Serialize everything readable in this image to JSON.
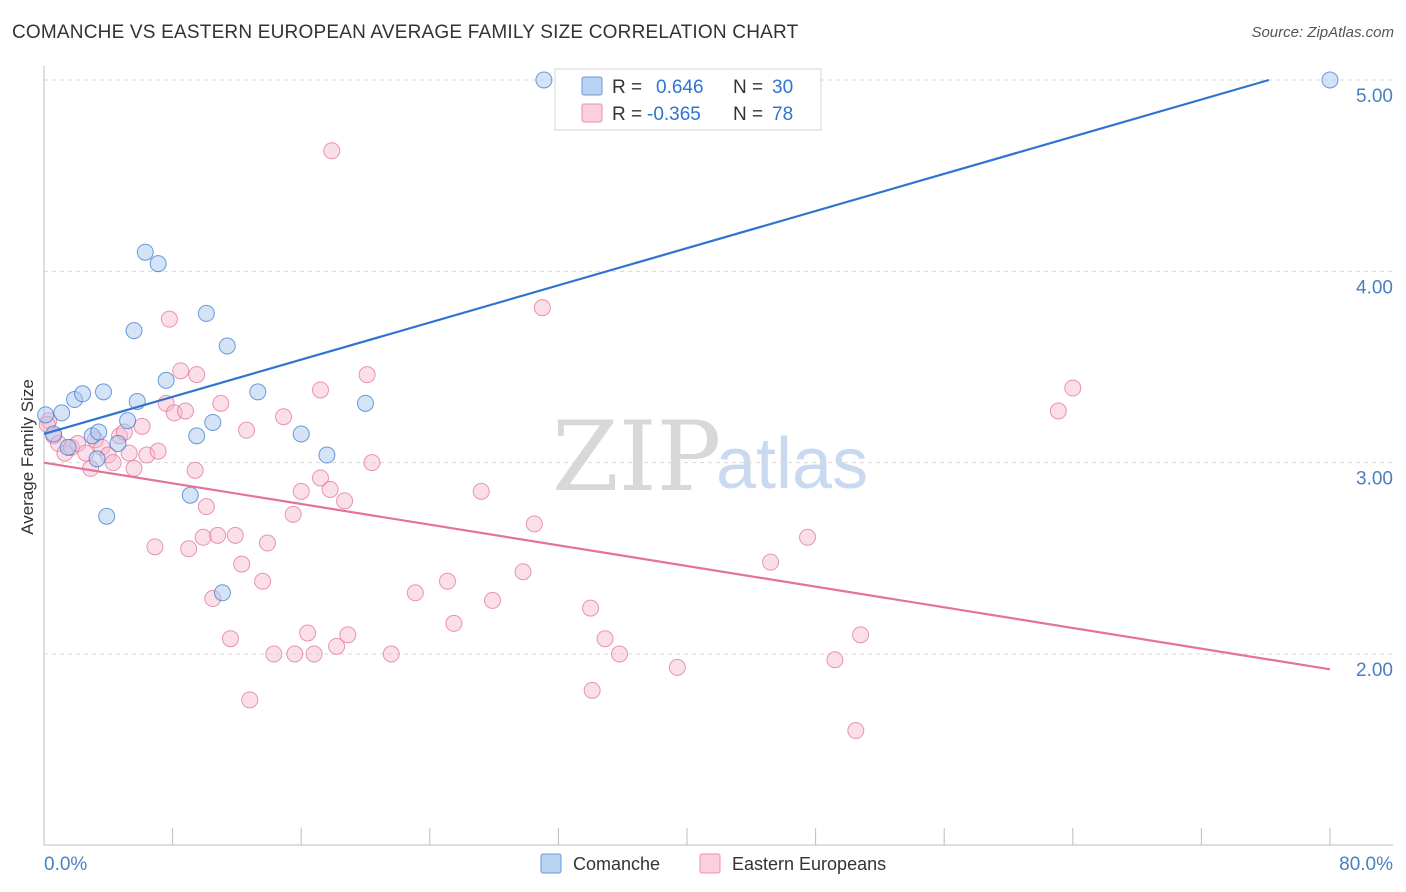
{
  "header": {
    "title": "COMANCHE VS EASTERN EUROPEAN AVERAGE FAMILY SIZE CORRELATION CHART",
    "source": "Source: ZipAtlas.com"
  },
  "watermark": {
    "zip": "ZIP",
    "atlas": "atlas"
  },
  "colors": {
    "comanche_fill": "#a9c8ee",
    "comanche_line": "#2f74d0",
    "eastern_fill": "#f6b8cb",
    "eastern_line": "#e4739a",
    "tick_text": "#4a7fc1",
    "grid": "#d9d9d9"
  },
  "legend_stats": {
    "comanche": {
      "r_label": "R =",
      "r_value": "0.646",
      "n_label": "N =",
      "n_value": "30"
    },
    "eastern": {
      "r_label": "R =",
      "r_value": "-0.365",
      "n_label": "N =",
      "n_value": "78"
    }
  },
  "chart_data": {
    "type": "scatter",
    "title": "COMANCHE VS EASTERN EUROPEAN AVERAGE FAMILY SIZE CORRELATION CHART",
    "xlabel": "",
    "ylabel": "Average Family Size",
    "xlim": [
      0,
      80
    ],
    "ylim": [
      1.0,
      5.15
    ],
    "x_tick_labels": [
      "0.0%",
      "80.0%"
    ],
    "y_ticks": [
      2.0,
      3.0,
      4.0,
      5.0
    ],
    "y_tick_labels": [
      "2.00",
      "3.00",
      "4.00",
      "5.00"
    ],
    "grid": true,
    "legend": "bottom-center",
    "series": [
      {
        "name": "Comanche",
        "trend": {
          "x": [
            0,
            76.2
          ],
          "y": [
            3.15,
            5.0
          ]
        },
        "points": [
          [
            0.1,
            3.25
          ],
          [
            0.6,
            3.15
          ],
          [
            1.1,
            3.26
          ],
          [
            1.5,
            3.08
          ],
          [
            1.9,
            3.33
          ],
          [
            2.4,
            3.36
          ],
          [
            3.0,
            3.14
          ],
          [
            3.4,
            3.16
          ],
          [
            3.3,
            3.02
          ],
          [
            3.7,
            3.37
          ],
          [
            3.9,
            2.72
          ],
          [
            4.6,
            3.1
          ],
          [
            5.2,
            3.22
          ],
          [
            5.6,
            3.69
          ],
          [
            5.8,
            3.32
          ],
          [
            6.3,
            4.1
          ],
          [
            7.1,
            4.04
          ],
          [
            7.6,
            3.43
          ],
          [
            9.1,
            2.83
          ],
          [
            9.5,
            3.14
          ],
          [
            10.1,
            3.78
          ],
          [
            10.5,
            3.21
          ],
          [
            11.1,
            2.32
          ],
          [
            11.4,
            3.61
          ],
          [
            13.3,
            3.37
          ],
          [
            16.0,
            3.15
          ],
          [
            17.6,
            3.04
          ],
          [
            20.0,
            3.31
          ],
          [
            31.1,
            5.0
          ],
          [
            80.0,
            5.0
          ]
        ]
      },
      {
        "name": "Eastern Europeans",
        "trend": {
          "x": [
            0,
            80
          ],
          "y": [
            3.0,
            1.92
          ]
        },
        "points": [
          [
            0.3,
            3.22
          ],
          [
            0.6,
            3.14
          ],
          [
            0.9,
            3.1
          ],
          [
            1.3,
            3.05
          ],
          [
            1.7,
            3.08
          ],
          [
            2.1,
            3.1
          ],
          [
            2.6,
            3.05
          ],
          [
            2.9,
            2.97
          ],
          [
            3.2,
            3.12
          ],
          [
            3.6,
            3.08
          ],
          [
            4.0,
            3.04
          ],
          [
            4.3,
            3.0
          ],
          [
            4.7,
            3.14
          ],
          [
            5.0,
            3.16
          ],
          [
            5.3,
            3.05
          ],
          [
            5.6,
            2.97
          ],
          [
            6.1,
            3.19
          ],
          [
            6.4,
            3.04
          ],
          [
            6.9,
            2.56
          ],
          [
            7.1,
            3.06
          ],
          [
            7.6,
            3.31
          ],
          [
            7.8,
            3.75
          ],
          [
            8.1,
            3.26
          ],
          [
            8.5,
            3.48
          ],
          [
            8.8,
            3.27
          ],
          [
            9.0,
            2.55
          ],
          [
            9.4,
            2.96
          ],
          [
            9.5,
            3.46
          ],
          [
            9.9,
            2.61
          ],
          [
            10.1,
            2.77
          ],
          [
            10.5,
            2.29
          ],
          [
            10.8,
            2.62
          ],
          [
            11.0,
            3.31
          ],
          [
            11.6,
            2.08
          ],
          [
            11.9,
            2.62
          ],
          [
            12.3,
            2.47
          ],
          [
            12.6,
            3.17
          ],
          [
            12.8,
            1.76
          ],
          [
            13.6,
            2.38
          ],
          [
            13.9,
            2.58
          ],
          [
            14.3,
            2.0
          ],
          [
            14.9,
            3.24
          ],
          [
            15.5,
            2.73
          ],
          [
            15.6,
            2.0
          ],
          [
            16.0,
            2.85
          ],
          [
            16.4,
            2.11
          ],
          [
            16.8,
            2.0
          ],
          [
            17.2,
            3.38
          ],
          [
            17.2,
            2.92
          ],
          [
            17.8,
            2.86
          ],
          [
            17.9,
            4.63
          ],
          [
            18.2,
            2.04
          ],
          [
            18.7,
            2.8
          ],
          [
            18.9,
            2.1
          ],
          [
            20.1,
            3.46
          ],
          [
            20.4,
            3.0
          ],
          [
            21.6,
            2.0
          ],
          [
            23.1,
            2.32
          ],
          [
            25.1,
            2.38
          ],
          [
            25.5,
            2.16
          ],
          [
            27.2,
            2.85
          ],
          [
            27.9,
            2.28
          ],
          [
            29.8,
            2.43
          ],
          [
            30.5,
            2.68
          ],
          [
            31.0,
            3.81
          ],
          [
            34.0,
            2.24
          ],
          [
            34.1,
            1.81
          ],
          [
            34.9,
            2.08
          ],
          [
            35.8,
            2.0
          ],
          [
            39.4,
            1.93
          ],
          [
            45.2,
            2.48
          ],
          [
            47.5,
            2.61
          ],
          [
            49.2,
            1.97
          ],
          [
            50.5,
            1.6
          ],
          [
            50.8,
            2.1
          ],
          [
            63.1,
            3.27
          ],
          [
            64.0,
            3.39
          ],
          [
            0.2,
            3.2
          ]
        ]
      }
    ]
  },
  "bottom_legend": [
    {
      "label": "Comanche"
    },
    {
      "label": "Eastern Europeans"
    }
  ]
}
